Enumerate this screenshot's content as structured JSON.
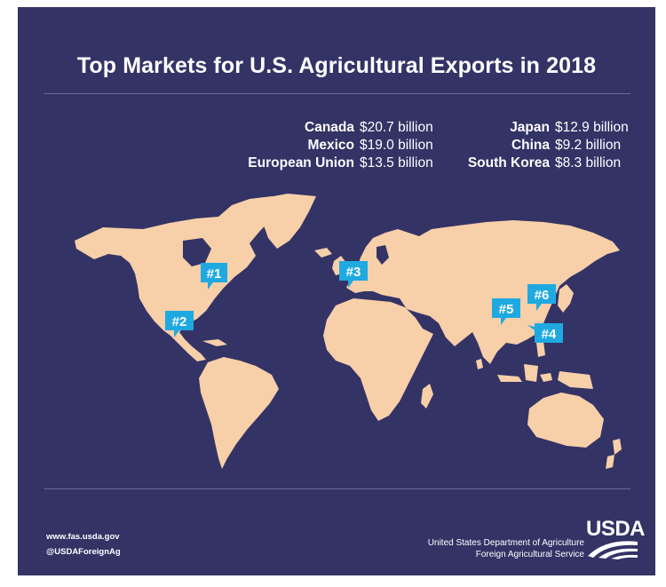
{
  "title": "Top Markets for U.S. Agricultural Exports in 2018",
  "markets_left": [
    {
      "name": "Canada",
      "value": "$20.7 billion"
    },
    {
      "name": "Mexico",
      "value": "$19.0 billion"
    },
    {
      "name": "European Union",
      "value": "$13.5 billion"
    }
  ],
  "markets_right": [
    {
      "name": "Japan",
      "value": "$12.9 billion"
    },
    {
      "name": "China",
      "value": "$9.2 billion"
    },
    {
      "name": "South Korea",
      "value": "$8.3 billion"
    }
  ],
  "map": {
    "land_color": "#f7cfa8",
    "ocean_color": "#333366",
    "marker_color": "#1fa9e1",
    "markers": [
      {
        "label": "#1",
        "place": "Canada"
      },
      {
        "label": "#2",
        "place": "Mexico"
      },
      {
        "label": "#3",
        "place": "European Union"
      },
      {
        "label": "#4",
        "place": "Japan"
      },
      {
        "label": "#5",
        "place": "China"
      },
      {
        "label": "#6",
        "place": "South Korea"
      }
    ]
  },
  "footer": {
    "website": "www.fas.usda.gov",
    "handle": "@USDAForeignAg",
    "agency_line1": "United States Department of Agriculture",
    "agency_line2": "Foreign Agricultural Service",
    "logo_text": "USDA"
  }
}
